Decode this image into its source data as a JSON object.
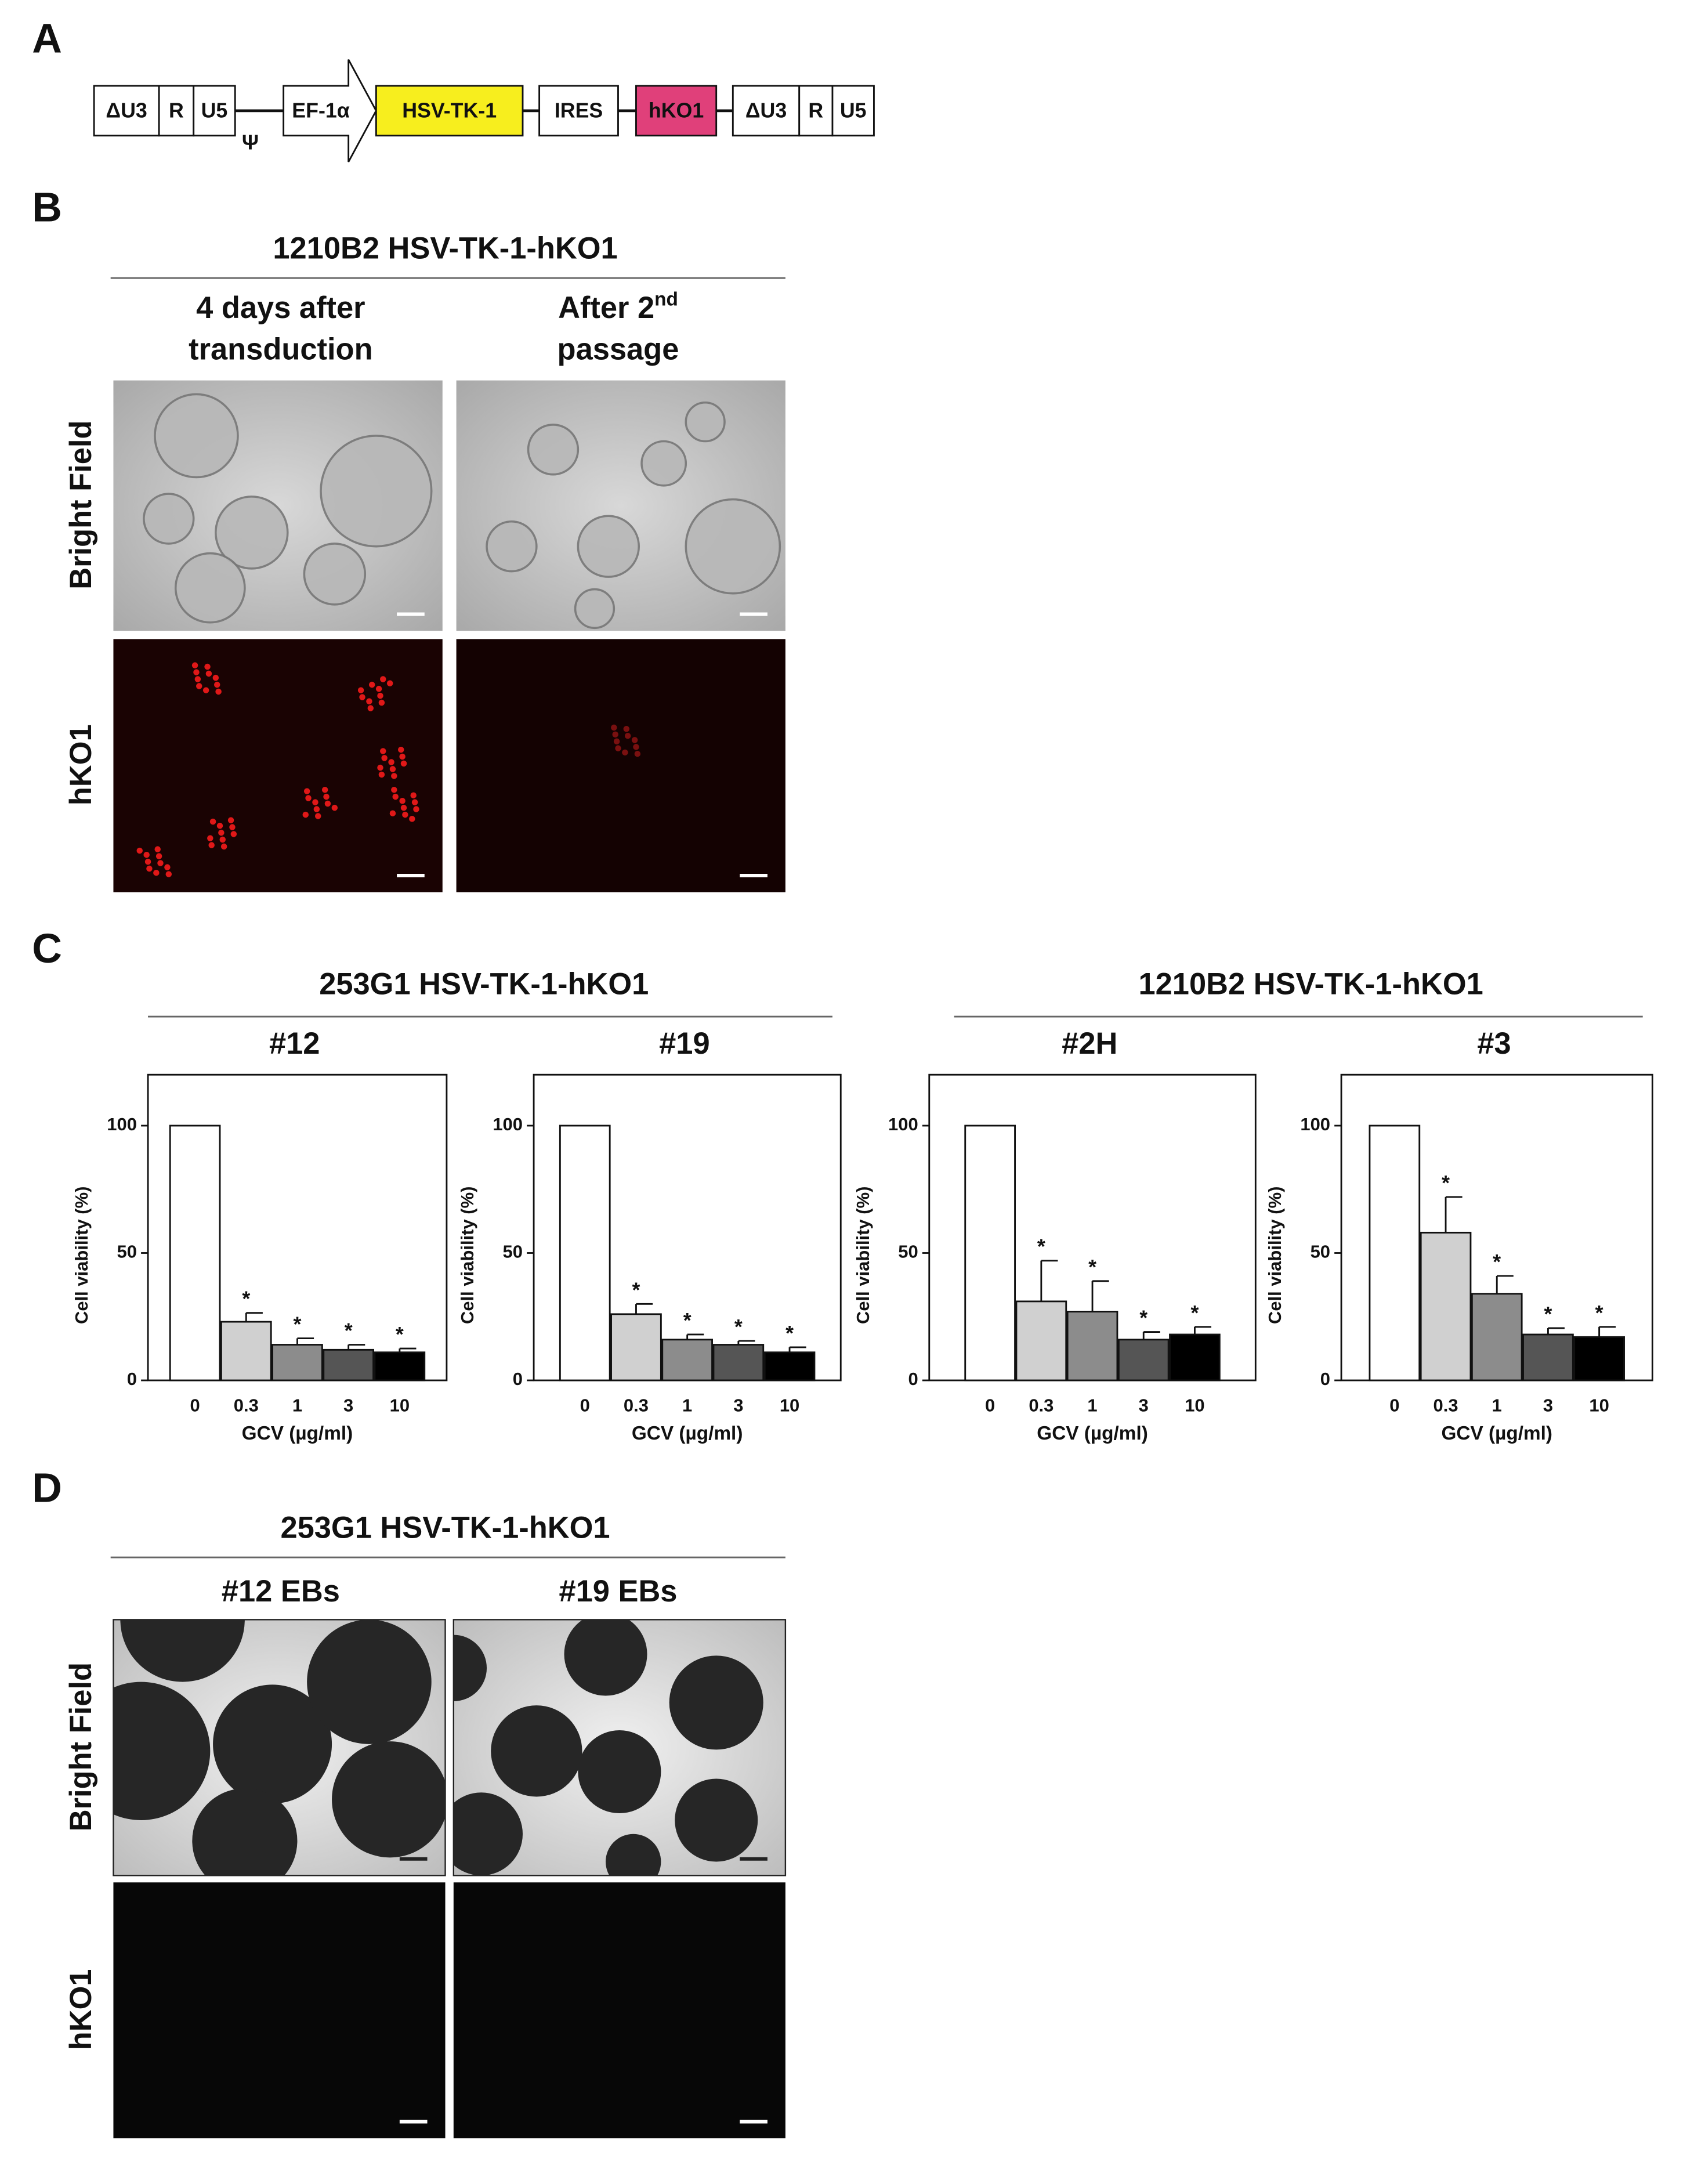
{
  "panel_labels": [
    "A",
    "B",
    "C",
    "D"
  ],
  "construct": {
    "elements": [
      "ΔU3",
      "R",
      "U5",
      "EF-1α",
      "HSV-TK-1",
      "IRES",
      "hKO1",
      "ΔU3",
      "R",
      "U5"
    ],
    "packaging_signal": "Ψ"
  },
  "panel_b": {
    "title": "1210B2 HSV-TK-1-hKO1",
    "columns": [
      {
        "line1": "4 days after",
        "line2": "transduction"
      },
      {
        "line1": "After 2",
        "superscript": "nd",
        "line2": "passage"
      }
    ],
    "rows": [
      "Bright Field",
      "hKO1"
    ]
  },
  "panel_c": {
    "groups": [
      {
        "title": "253G1 HSV-TK-1-hKO1"
      },
      {
        "title": "1210B2 HSV-TK-1-hKO1"
      }
    ]
  },
  "panel_d": {
    "title": "253G1 HSV-TK-1-hKO1",
    "columns": [
      "#12 EBs",
      "#19 EBs"
    ],
    "rows": [
      "Bright Field",
      "hKO1"
    ]
  },
  "chart_data": [
    {
      "type": "bar",
      "title": "#12",
      "categories": [
        "0",
        "0.3",
        "1",
        "3",
        "10"
      ],
      "values": [
        100,
        23,
        14,
        12,
        11
      ],
      "errors": [
        0,
        3.5,
        2.5,
        2,
        1.5
      ],
      "colors": [
        "#ffffff",
        "#d0d0d0",
        "#8c8c8c",
        "#555555",
        "#000000"
      ],
      "ylabel": "Cell viability (%)",
      "xlabel": "GCV (µg/ml)",
      "ylim": [
        0,
        120
      ],
      "yticks": [
        0,
        50,
        100
      ],
      "significance_marker": "*",
      "significant": [
        false,
        true,
        true,
        true,
        true
      ]
    },
    {
      "type": "bar",
      "title": "#19",
      "categories": [
        "0",
        "0.3",
        "1",
        "3",
        "10"
      ],
      "values": [
        100,
        26,
        16,
        14,
        11
      ],
      "errors": [
        0,
        4,
        2,
        1.5,
        2
      ],
      "colors": [
        "#ffffff",
        "#d0d0d0",
        "#8c8c8c",
        "#555555",
        "#000000"
      ],
      "ylabel": "Cell viability (%)",
      "xlabel": "GCV (µg/ml)",
      "ylim": [
        0,
        120
      ],
      "yticks": [
        0,
        50,
        100
      ],
      "significance_marker": "*",
      "significant": [
        false,
        true,
        true,
        true,
        true
      ]
    },
    {
      "type": "bar",
      "title": "#2H",
      "categories": [
        "0",
        "0.3",
        "1",
        "3",
        "10"
      ],
      "values": [
        100,
        31,
        27,
        16,
        18
      ],
      "errors": [
        0,
        16,
        12,
        3,
        3
      ],
      "colors": [
        "#ffffff",
        "#d0d0d0",
        "#8c8c8c",
        "#555555",
        "#000000"
      ],
      "ylabel": "Cell viability (%)",
      "xlabel": "GCV (µg/ml)",
      "ylim": [
        0,
        120
      ],
      "yticks": [
        0,
        50,
        100
      ],
      "significance_marker": "*",
      "significant": [
        false,
        true,
        true,
        true,
        true
      ]
    },
    {
      "type": "bar",
      "title": "#3",
      "categories": [
        "0",
        "0.3",
        "1",
        "3",
        "10"
      ],
      "values": [
        100,
        58,
        34,
        18,
        17
      ],
      "errors": [
        0,
        14,
        7,
        2.5,
        4
      ],
      "colors": [
        "#ffffff",
        "#d0d0d0",
        "#8c8c8c",
        "#555555",
        "#000000"
      ],
      "ylabel": "Cell viability (%)",
      "xlabel": "GCV (µg/ml)",
      "ylim": [
        0,
        120
      ],
      "yticks": [
        0,
        50,
        100
      ],
      "significance_marker": "*",
      "significant": [
        false,
        true,
        true,
        true,
        true
      ]
    }
  ]
}
